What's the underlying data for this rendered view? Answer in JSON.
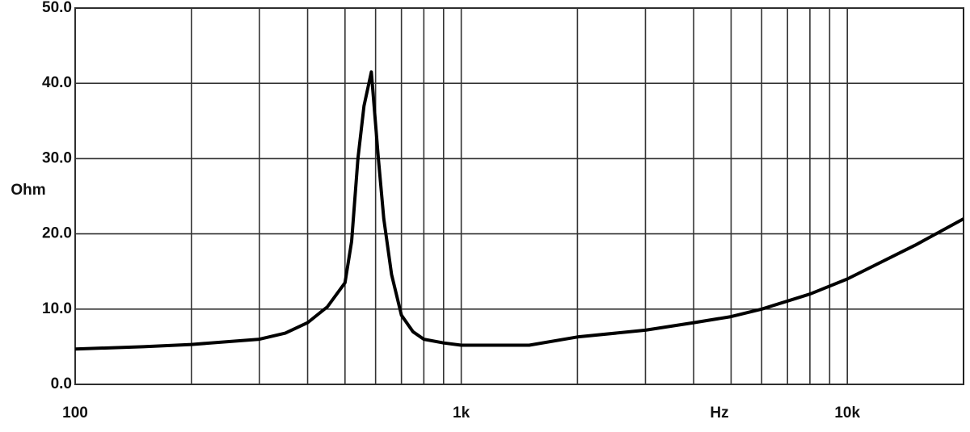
{
  "chart_data": {
    "type": "line",
    "x_label": "Hz",
    "y_label": "Ohm",
    "x_scale": "log",
    "xlim": [
      100,
      20000
    ],
    "ylim": [
      0,
      50
    ],
    "xticks": [
      100,
      {
        "value": 1000,
        "label": "1k"
      },
      {
        "value": 10000,
        "label": "10k"
      }
    ],
    "xminor": [
      200,
      300,
      400,
      500,
      600,
      700,
      800,
      900,
      2000,
      3000,
      4000,
      5000,
      6000,
      7000,
      8000,
      9000
    ],
    "yticks": [
      {
        "value": 0,
        "label": "0.0"
      },
      {
        "value": 10,
        "label": "10.0"
      },
      {
        "value": 20,
        "label": "20.0"
      },
      {
        "value": 30,
        "label": "30.0"
      },
      {
        "value": 40,
        "label": "40.0"
      },
      {
        "value": 50,
        "label": "50.0"
      }
    ],
    "grid": true,
    "series": [
      {
        "color": "#000000",
        "x": [
          100,
          150,
          200,
          300,
          350,
          400,
          450,
          500,
          520,
          540,
          560,
          585,
          610,
          630,
          660,
          700,
          750,
          800,
          900,
          1000,
          1500,
          2000,
          3000,
          4000,
          5000,
          6000,
          8000,
          10000,
          15000,
          20000
        ],
        "values": [
          4.7,
          5.0,
          5.3,
          6.0,
          6.8,
          8.2,
          10.3,
          13.5,
          19,
          30,
          37,
          41.5,
          30,
          22,
          14.6,
          9.2,
          7,
          6,
          5.5,
          5.2,
          5.2,
          6.3,
          7.2,
          8.2,
          9.0,
          10,
          12.0,
          14.0,
          18.5,
          22
        ]
      }
    ]
  }
}
